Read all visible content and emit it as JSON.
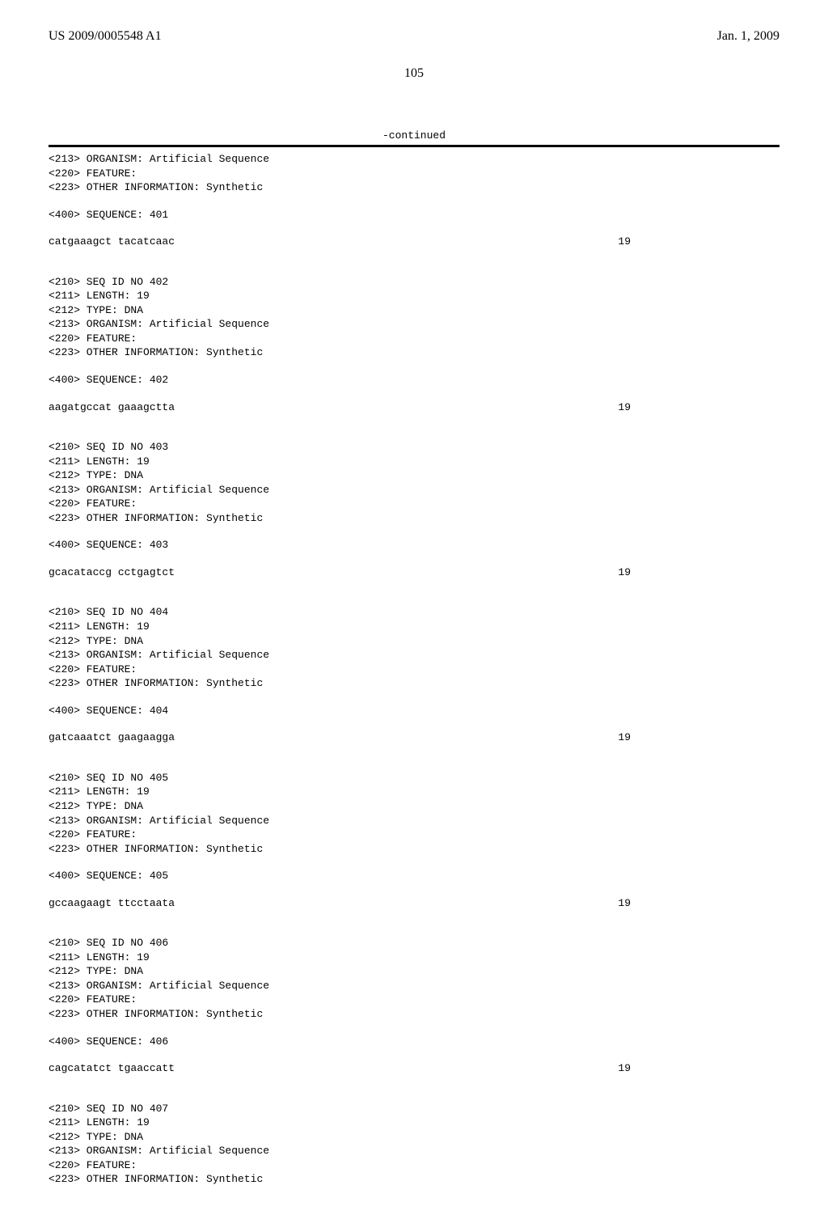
{
  "header": {
    "left": "US 2009/0005548 A1",
    "right": "Jan. 1, 2009"
  },
  "page_number": "105",
  "continued_label": "-continued",
  "entries": [
    {
      "pre_lines": [
        "<213> ORGANISM: Artificial Sequence",
        "<220> FEATURE:",
        "<223> OTHER INFORMATION: Synthetic"
      ],
      "seq_header": "<400> SEQUENCE: 401",
      "sequence": "catgaaagct tacatcaac",
      "length_display": "19"
    },
    {
      "pre_lines": [
        "<210> SEQ ID NO 402",
        "<211> LENGTH: 19",
        "<212> TYPE: DNA",
        "<213> ORGANISM: Artificial Sequence",
        "<220> FEATURE:",
        "<223> OTHER INFORMATION: Synthetic"
      ],
      "seq_header": "<400> SEQUENCE: 402",
      "sequence": "aagatgccat gaaagctta",
      "length_display": "19"
    },
    {
      "pre_lines": [
        "<210> SEQ ID NO 403",
        "<211> LENGTH: 19",
        "<212> TYPE: DNA",
        "<213> ORGANISM: Artificial Sequence",
        "<220> FEATURE:",
        "<223> OTHER INFORMATION: Synthetic"
      ],
      "seq_header": "<400> SEQUENCE: 403",
      "sequence": "gcacataccg cctgagtct",
      "length_display": "19"
    },
    {
      "pre_lines": [
        "<210> SEQ ID NO 404",
        "<211> LENGTH: 19",
        "<212> TYPE: DNA",
        "<213> ORGANISM: Artificial Sequence",
        "<220> FEATURE:",
        "<223> OTHER INFORMATION: Synthetic"
      ],
      "seq_header": "<400> SEQUENCE: 404",
      "sequence": "gatcaaatct gaagaagga",
      "length_display": "19"
    },
    {
      "pre_lines": [
        "<210> SEQ ID NO 405",
        "<211> LENGTH: 19",
        "<212> TYPE: DNA",
        "<213> ORGANISM: Artificial Sequence",
        "<220> FEATURE:",
        "<223> OTHER INFORMATION: Synthetic"
      ],
      "seq_header": "<400> SEQUENCE: 405",
      "sequence": "gccaagaagt ttcctaata",
      "length_display": "19"
    },
    {
      "pre_lines": [
        "<210> SEQ ID NO 406",
        "<211> LENGTH: 19",
        "<212> TYPE: DNA",
        "<213> ORGANISM: Artificial Sequence",
        "<220> FEATURE:",
        "<223> OTHER INFORMATION: Synthetic"
      ],
      "seq_header": "<400> SEQUENCE: 406",
      "sequence": "cagcatatct tgaaccatt",
      "length_display": "19"
    },
    {
      "pre_lines": [
        "<210> SEQ ID NO 407",
        "<211> LENGTH: 19",
        "<212> TYPE: DNA",
        "<213> ORGANISM: Artificial Sequence",
        "<220> FEATURE:",
        "<223> OTHER INFORMATION: Synthetic"
      ],
      "seq_header": "",
      "sequence": "",
      "length_display": ""
    }
  ]
}
